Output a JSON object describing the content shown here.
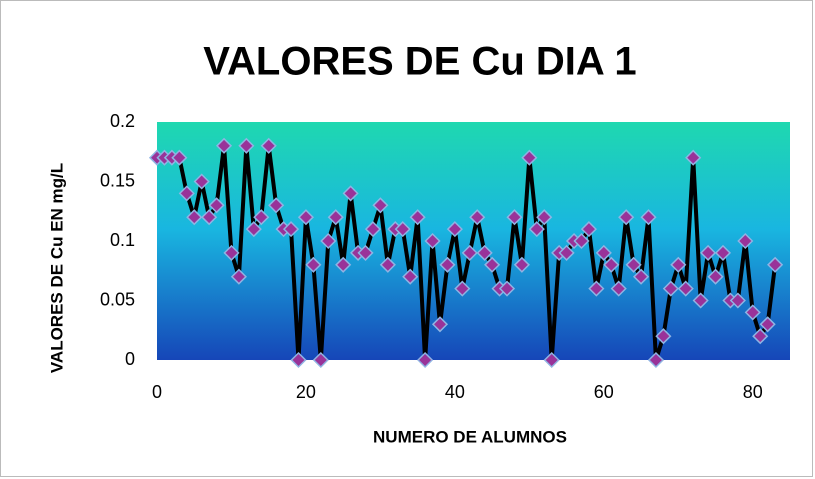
{
  "chart_data": {
    "type": "line",
    "title": "VALORES DE Cu DIA 1",
    "x_label": "NUMERO DE ALUMNOS",
    "y_label": "VALORES DE Cu EN mg/L",
    "x": [
      0,
      1,
      2,
      3,
      4,
      5,
      6,
      7,
      8,
      9,
      10,
      11,
      12,
      13,
      14,
      15,
      16,
      17,
      18,
      19,
      20,
      21,
      22,
      23,
      24,
      25,
      26,
      27,
      28,
      29,
      30,
      31,
      32,
      33,
      34,
      35,
      36,
      37,
      38,
      39,
      40,
      41,
      42,
      43,
      44,
      45,
      46,
      47,
      48,
      49,
      50,
      51,
      52,
      53,
      54,
      55,
      56,
      57,
      58,
      59,
      60,
      61,
      62,
      63,
      64,
      65,
      66,
      67,
      68,
      69,
      70,
      71,
      72,
      73,
      74,
      75,
      76,
      77,
      78,
      79,
      80,
      81,
      82,
      83
    ],
    "series": [
      {
        "name": "Cu",
        "color": "#000000",
        "marker_color": "#993399",
        "values": [
          0.17,
          0.17,
          0.17,
          0.17,
          0.14,
          0.12,
          0.15,
          0.12,
          0.13,
          0.18,
          0.09,
          0.07,
          0.18,
          0.11,
          0.12,
          0.18,
          0.13,
          0.11,
          0.11,
          0,
          0.12,
          0.08,
          0,
          0.1,
          0.12,
          0.08,
          0.14,
          0.09,
          0.09,
          0.11,
          0.13,
          0.08,
          0.11,
          0.11,
          0.07,
          0.12,
          0,
          0.1,
          0.03,
          0.08,
          0.11,
          0.06,
          0.09,
          0.12,
          0.09,
          0.08,
          0.06,
          0.06,
          0.12,
          0.08,
          0.17,
          0.11,
          0.12,
          0,
          0.09,
          0.09,
          0.1,
          0.1,
          0.11,
          0.06,
          0.09,
          0.08,
          0.06,
          0.12,
          0.08,
          0.07,
          0.12,
          0,
          0.02,
          0.06,
          0.08,
          0.06,
          0.17,
          0.05,
          0.09,
          0.07,
          0.09,
          0.05,
          0.05,
          0.1,
          0.04,
          0.02,
          0.03,
          0.08
        ]
      }
    ],
    "xlim": [
      0,
      85
    ],
    "xticks": [
      0,
      20,
      40,
      60,
      80
    ],
    "ylim": [
      0,
      0.2
    ],
    "yticks": [
      0,
      0.05,
      0.1,
      0.15,
      0.2
    ]
  }
}
